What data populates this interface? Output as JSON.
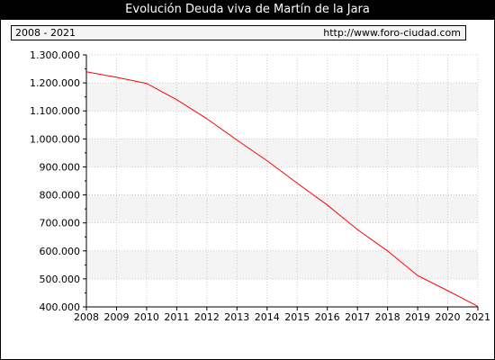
{
  "chart_data": {
    "type": "line",
    "title": "Evolución Deuda viva de Martín de la Jara",
    "period_label": "2008 - 2021",
    "source_label": "http://www.foro-ciudad.com",
    "x": [
      2008,
      2009,
      2010,
      2011,
      2012,
      2013,
      2014,
      2015,
      2016,
      2017,
      2018,
      2019,
      2020,
      2021
    ],
    "series": [
      {
        "values": [
          1240000,
          1220000,
          1198000,
          1140000,
          1072000,
          996000,
          922000,
          842000,
          764000,
          676000,
          600000,
          512000,
          458000,
          402000
        ],
        "color": "#ff0000"
      }
    ],
    "x_tick_labels": [
      "2008",
      "2009",
      "2010",
      "2011",
      "2012",
      "2013",
      "2014",
      "2015",
      "2016",
      "2017",
      "2018",
      "2019",
      "2020",
      "2021"
    ],
    "y_ticks": [
      400000,
      500000,
      600000,
      700000,
      800000,
      900000,
      1000000,
      1100000,
      1200000,
      1300000
    ],
    "y_tick_labels": [
      "400.000",
      "500.000",
      "600.000",
      "700.000",
      "800.000",
      "900.000",
      "1.000.000",
      "1.100.000",
      "1.200.000",
      "1.300.000"
    ],
    "xlim": [
      2008,
      2021
    ],
    "ylim": [
      400000,
      1300000
    ],
    "grid": true,
    "band_color": "#f4f4f4",
    "grid_color": "#cccccc"
  }
}
